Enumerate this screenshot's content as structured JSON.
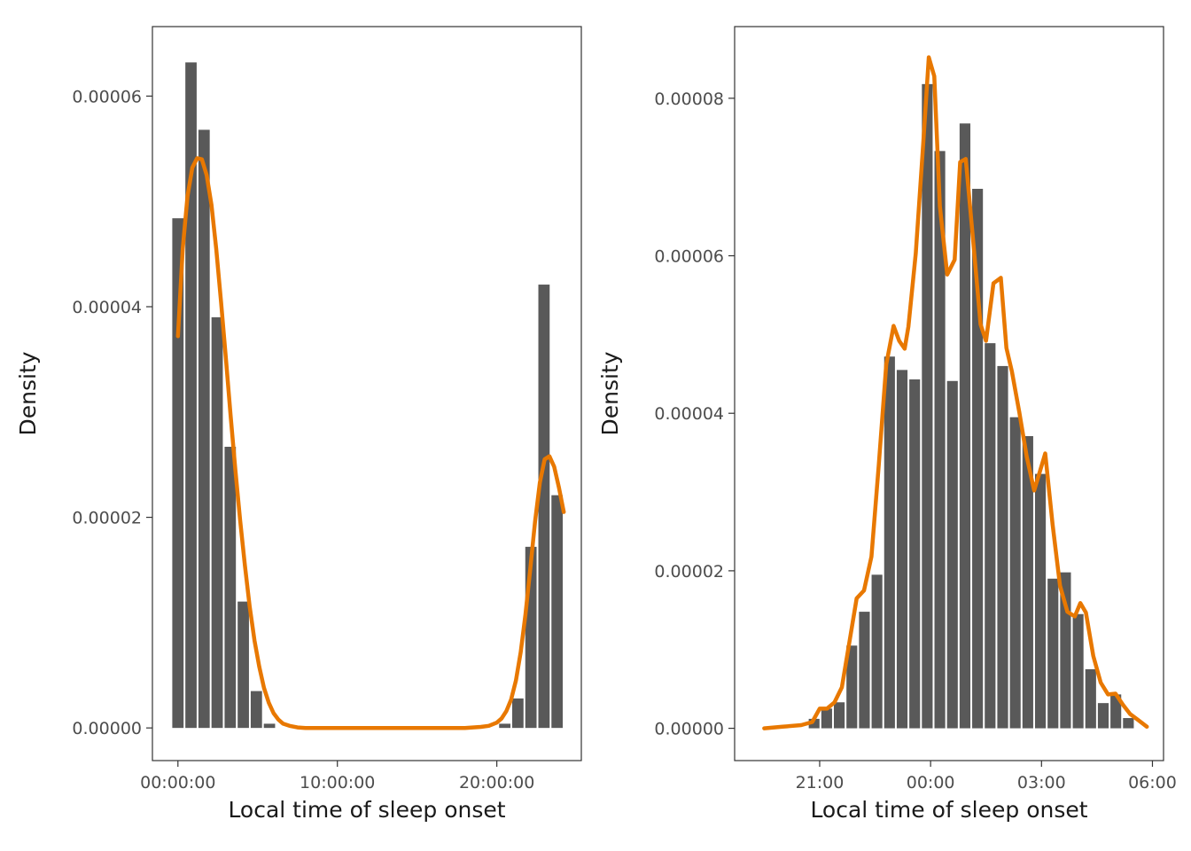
{
  "colors": {
    "bar": "#595959",
    "curve": "#E87800",
    "panel_border": "#333333",
    "tick_text": "#4d4d4d",
    "title_text": "#1a1a1a",
    "background": "#ffffff"
  },
  "chart_data": [
    {
      "type": "bar",
      "xlabel": "Local time of sleep onset",
      "ylabel": "Density",
      "x_unit": "hours since 00:00",
      "xlim": [
        -1.6,
        25.3
      ],
      "ylim": [
        -3.1e-06,
        6.66e-05
      ],
      "x_ticks": [
        {
          "value": 0,
          "label": "00:00:00"
        },
        {
          "value": 10,
          "label": "10:00:00"
        },
        {
          "value": 20,
          "label": "20:00:00"
        }
      ],
      "y_ticks": [
        {
          "value": 0,
          "label": "0.00000"
        },
        {
          "value": 2e-05,
          "label": "0.00002"
        },
        {
          "value": 4e-05,
          "label": "0.00004"
        },
        {
          "value": 6e-05,
          "label": "0.00006"
        }
      ],
      "bar_width": 0.82,
      "bins": [
        {
          "x": 0.0,
          "y": 4.84e-05
        },
        {
          "x": 0.82,
          "y": 6.32e-05
        },
        {
          "x": 1.64,
          "y": 5.68e-05
        },
        {
          "x": 2.46,
          "y": 3.9e-05
        },
        {
          "x": 3.28,
          "y": 2.67e-05
        },
        {
          "x": 4.1,
          "y": 1.2e-05
        },
        {
          "x": 4.92,
          "y": 3.5e-06
        },
        {
          "x": 5.74,
          "y": 4e-07
        },
        {
          "x": 20.5,
          "y": 4e-07
        },
        {
          "x": 21.32,
          "y": 2.8e-06
        },
        {
          "x": 22.14,
          "y": 1.72e-05
        },
        {
          "x": 22.96,
          "y": 4.21e-05
        },
        {
          "x": 23.78,
          "y": 2.21e-05
        }
      ],
      "density_curve": {
        "x": [
          0.0,
          0.3,
          0.6,
          0.9,
          1.2,
          1.5,
          1.8,
          2.1,
          2.4,
          2.7,
          3.0,
          3.3,
          3.6,
          3.9,
          4.2,
          4.5,
          4.8,
          5.1,
          5.4,
          5.7,
          6.0,
          6.3,
          6.6,
          7.0,
          7.5,
          8.0,
          9.0,
          12.0,
          16.0,
          18.0,
          19.0,
          19.5,
          20.0,
          20.3,
          20.6,
          20.9,
          21.2,
          21.5,
          21.8,
          22.1,
          22.4,
          22.7,
          23.0,
          23.3,
          23.6,
          23.9,
          24.2
        ],
        "y": [
          3.72e-05,
          4.55e-05,
          5.05e-05,
          5.32e-05,
          5.41e-05,
          5.4e-05,
          5.25e-05,
          4.97e-05,
          4.55e-05,
          4.05e-05,
          3.52e-05,
          2.97e-05,
          2.45e-05,
          1.97e-05,
          1.54e-05,
          1.15e-05,
          8.3e-06,
          5.8e-06,
          3.8e-06,
          2.4e-06,
          1.4e-06,
          8e-07,
          4e-07,
          2e-07,
          5e-08,
          0.0,
          0.0,
          0.0,
          0.0,
          0.0,
          1e-07,
          2e-07,
          5e-07,
          9e-07,
          1.6e-06,
          2.7e-06,
          4.5e-06,
          7.2e-06,
          1.08e-05,
          1.51e-05,
          1.96e-05,
          2.33e-05,
          2.55e-05,
          2.58e-05,
          2.48e-05,
          2.28e-05,
          2.05e-05
        ]
      }
    },
    {
      "type": "bar",
      "xlabel": "Local time of sleep onset",
      "ylabel": "Density",
      "x_unit": "hours relative to 00:00",
      "xlim": [
        -5.3,
        6.3
      ],
      "ylim": [
        -4.1e-06,
        8.91e-05
      ],
      "x_ticks": [
        {
          "value": -3,
          "label": "21:00"
        },
        {
          "value": 0,
          "label": "00:00"
        },
        {
          "value": 3,
          "label": "03:00"
        },
        {
          "value": 6,
          "label": "06:00"
        }
      ],
      "y_ticks": [
        {
          "value": 0,
          "label": "0.00000"
        },
        {
          "value": 2e-05,
          "label": "0.00002"
        },
        {
          "value": 4e-05,
          "label": "0.00004"
        },
        {
          "value": 6e-05,
          "label": "0.00006"
        },
        {
          "value": 8e-05,
          "label": "0.00008"
        }
      ],
      "bar_width": 0.339,
      "bins": [
        {
          "x": -3.15,
          "y": 1.2e-06
        },
        {
          "x": -2.81,
          "y": 2.5e-06
        },
        {
          "x": -2.47,
          "y": 3.3e-06
        },
        {
          "x": -2.13,
          "y": 1.05e-05
        },
        {
          "x": -1.79,
          "y": 1.48e-05
        },
        {
          "x": -1.45,
          "y": 1.95e-05
        },
        {
          "x": -1.11,
          "y": 4.72e-05
        },
        {
          "x": -0.77,
          "y": 4.55e-05
        },
        {
          "x": -0.43,
          "y": 4.43e-05
        },
        {
          "x": -0.09,
          "y": 8.18e-05
        },
        {
          "x": 0.25,
          "y": 7.33e-05
        },
        {
          "x": 0.59,
          "y": 4.41e-05
        },
        {
          "x": 0.93,
          "y": 7.68e-05
        },
        {
          "x": 1.27,
          "y": 6.85e-05
        },
        {
          "x": 1.61,
          "y": 4.89e-05
        },
        {
          "x": 1.95,
          "y": 4.6e-05
        },
        {
          "x": 2.29,
          "y": 3.95e-05
        },
        {
          "x": 2.63,
          "y": 3.71e-05
        },
        {
          "x": 2.97,
          "y": 3.23e-05
        },
        {
          "x": 3.31,
          "y": 1.9e-05
        },
        {
          "x": 3.65,
          "y": 1.98e-05
        },
        {
          "x": 3.99,
          "y": 1.45e-05
        },
        {
          "x": 4.33,
          "y": 7.5e-06
        },
        {
          "x": 4.67,
          "y": 3.2e-06
        },
        {
          "x": 5.01,
          "y": 4.3e-06
        },
        {
          "x": 5.35,
          "y": 1.3e-06
        }
      ],
      "density_curve": {
        "x": [
          -4.5,
          -4.0,
          -3.5,
          -3.2,
          -3.0,
          -2.8,
          -2.6,
          -2.4,
          -2.2,
          -2.0,
          -1.8,
          -1.6,
          -1.4,
          -1.2,
          -1.0,
          -0.85,
          -0.7,
          -0.6,
          -0.4,
          -0.2,
          -0.05,
          0.1,
          0.25,
          0.45,
          0.65,
          0.8,
          0.95,
          1.15,
          1.35,
          1.5,
          1.7,
          1.9,
          2.05,
          2.2,
          2.4,
          2.6,
          2.8,
          2.95,
          3.1,
          3.3,
          3.5,
          3.7,
          3.9,
          4.05,
          4.2,
          4.4,
          4.6,
          4.8,
          5.0,
          5.2,
          5.4,
          5.6,
          5.85
        ],
        "y": [
          0.0,
          2e-07,
          4e-07,
          8e-07,
          2.5e-06,
          2.5e-06,
          3.3e-06,
          5.2e-06,
          1.08e-05,
          1.65e-05,
          1.75e-05,
          2.18e-05,
          3.35e-05,
          4.62e-05,
          5.11e-05,
          4.92e-05,
          4.82e-05,
          5.1e-05,
          6.03e-05,
          7.42e-05,
          8.52e-05,
          8.28e-05,
          6.63e-05,
          5.76e-05,
          5.95e-05,
          7.19e-05,
          7.23e-05,
          6.2e-05,
          5.13e-05,
          4.92e-05,
          5.65e-05,
          5.72e-05,
          4.83e-05,
          4.53e-05,
          4.01e-05,
          3.45e-05,
          3.02e-05,
          3.25e-05,
          3.49e-05,
          2.59e-05,
          1.81e-05,
          1.48e-05,
          1.42e-05,
          1.59e-05,
          1.47e-05,
          9.2e-06,
          5.8e-06,
          4.3e-06,
          4.4e-06,
          3e-06,
          1.8e-06,
          1.1e-06,
          2e-07
        ]
      }
    }
  ]
}
